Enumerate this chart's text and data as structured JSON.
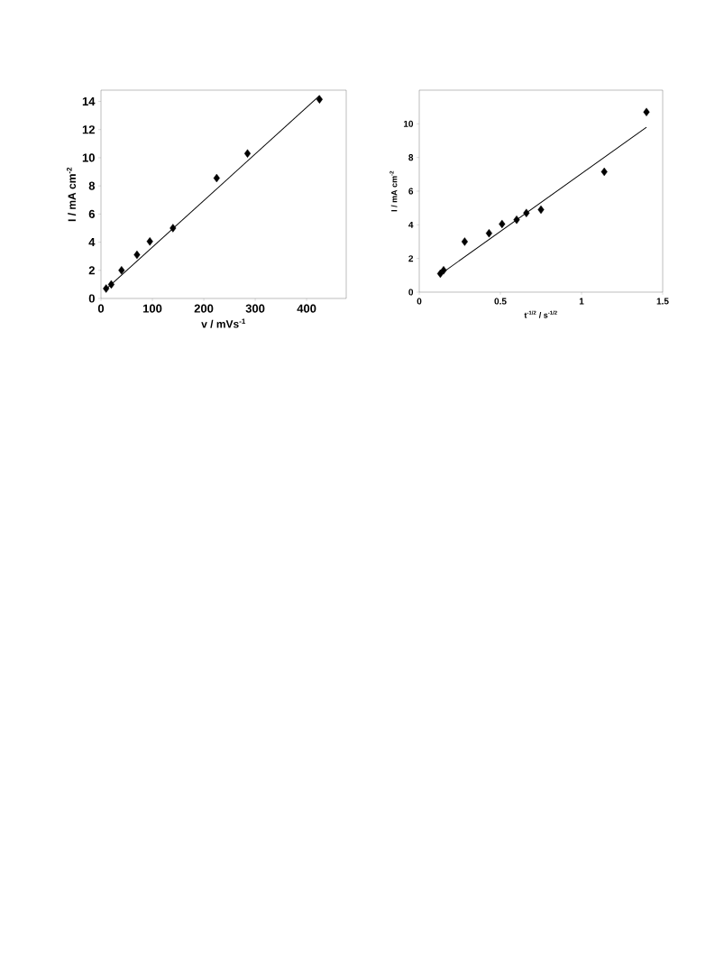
{
  "chart_data": [
    {
      "type": "scatter",
      "xlabel": "v / mVs$^{-1}$",
      "ylabel": "I / mA cm$^{-2}$",
      "xlim": [
        0,
        477
      ],
      "ylim": [
        0,
        14.8
      ],
      "xticks": [
        0,
        100,
        200,
        300,
        400
      ],
      "yticks": [
        0,
        2,
        4,
        6,
        8,
        10,
        12,
        14
      ],
      "grid": false,
      "series": [
        {
          "color": "#000000",
          "marker": "diamond",
          "x": [
            10,
            20,
            40,
            70,
            95,
            140,
            225,
            285,
            425
          ],
          "values": [
            0.7,
            1.0,
            2.0,
            3.1,
            4.05,
            5.0,
            8.55,
            10.3,
            14.15
          ]
        },
        {
          "type": "line",
          "color": "#000000",
          "marker": "none",
          "line_style": "solid",
          "x": [
            8,
            425
          ],
          "values": [
            0.6,
            14.4
          ]
        }
      ]
    },
    {
      "type": "scatter",
      "xlabel": "t$^{-1/2}$ / s$^{-1/2}$",
      "ylabel": "I / mA cm$^{-2}$",
      "xlim": [
        0,
        1.5
      ],
      "ylim": [
        0,
        12
      ],
      "xticks": [
        0,
        0.5,
        1,
        1.5
      ],
      "yticks": [
        0,
        2,
        4,
        6,
        8,
        10
      ],
      "grid": false,
      "series": [
        {
          "color": "#000000",
          "marker": "diamond",
          "x": [
            0.13,
            0.15,
            0.28,
            0.43,
            0.51,
            0.6,
            0.66,
            0.75,
            1.14,
            1.4
          ],
          "values": [
            1.1,
            1.3,
            3.0,
            3.5,
            4.05,
            4.3,
            4.7,
            4.9,
            7.15,
            10.7
          ]
        },
        {
          "type": "line",
          "color": "#000000",
          "marker": "none",
          "line_style": "solid",
          "x": [
            0.15,
            1.4
          ],
          "values": [
            1.2,
            9.8
          ]
        }
      ]
    }
  ]
}
